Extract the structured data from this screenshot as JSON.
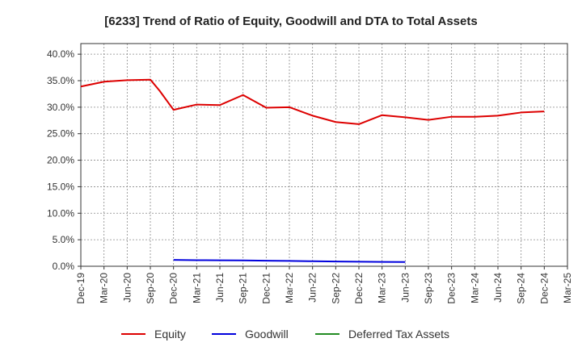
{
  "chart_data": {
    "type": "line",
    "title": "[6233]  Trend of Ratio of Equity, Goodwill and DTA to Total Assets",
    "xlabel": "",
    "ylabel": "",
    "x": [
      "Dec-19",
      "Mar-20",
      "Jun-20",
      "Sep-20",
      "Dec-20",
      "Mar-21",
      "Jun-21",
      "Sep-21",
      "Dec-21",
      "Mar-22",
      "Jun-22",
      "Sep-22",
      "Dec-22",
      "Mar-23",
      "Jun-23",
      "Sep-23",
      "Dec-23",
      "Mar-24",
      "Jun-24",
      "Sep-24",
      "Dec-24",
      "Mar-25"
    ],
    "ylim": [
      0,
      0.42
    ],
    "yticks": [
      0,
      0.05,
      0.1,
      0.15,
      0.2,
      0.25,
      0.3,
      0.35,
      0.4
    ],
    "ytick_labels": [
      "0.0%",
      "5.0%",
      "10.0%",
      "15.0%",
      "20.0%",
      "25.0%",
      "30.0%",
      "35.0%",
      "40.0%"
    ],
    "grid": true,
    "legend_position": "bottom",
    "series": [
      {
        "name": "Equity",
        "color": "#dd0000",
        "points": [
          {
            "x": 0,
            "y": 0.339
          },
          {
            "x": 1,
            "y": 0.348
          },
          {
            "x": 2,
            "y": 0.351
          },
          {
            "x": 3,
            "y": 0.352
          },
          {
            "x": 3.4,
            "y": 0.331
          },
          {
            "x": 4,
            "y": 0.295
          },
          {
            "x": 5,
            "y": 0.305
          },
          {
            "x": 6,
            "y": 0.304
          },
          {
            "x": 7,
            "y": 0.323
          },
          {
            "x": 8,
            "y": 0.299
          },
          {
            "x": 9,
            "y": 0.3
          },
          {
            "x": 10,
            "y": 0.284
          },
          {
            "x": 11,
            "y": 0.272
          },
          {
            "x": 12,
            "y": 0.268
          },
          {
            "x": 13,
            "y": 0.285
          },
          {
            "x": 14,
            "y": 0.281
          },
          {
            "x": 15,
            "y": 0.276
          },
          {
            "x": 16,
            "y": 0.282
          },
          {
            "x": 17,
            "y": 0.282
          },
          {
            "x": 18,
            "y": 0.284
          },
          {
            "x": 19,
            "y": 0.29
          },
          {
            "x": 20,
            "y": 0.292
          }
        ]
      },
      {
        "name": "Goodwill",
        "color": "#0000dd",
        "points": [
          {
            "x": 4,
            "y": 0.012
          },
          {
            "x": 5,
            "y": 0.0115
          },
          {
            "x": 6,
            "y": 0.0112
          },
          {
            "x": 7,
            "y": 0.011
          },
          {
            "x": 8,
            "y": 0.0105
          },
          {
            "x": 9,
            "y": 0.01
          },
          {
            "x": 10,
            "y": 0.0095
          },
          {
            "x": 11,
            "y": 0.009
          },
          {
            "x": 12,
            "y": 0.0085
          },
          {
            "x": 13,
            "y": 0.0082
          },
          {
            "x": 14,
            "y": 0.008
          }
        ]
      },
      {
        "name": "Deferred Tax Assets",
        "color": "#228b22",
        "points": []
      }
    ]
  }
}
